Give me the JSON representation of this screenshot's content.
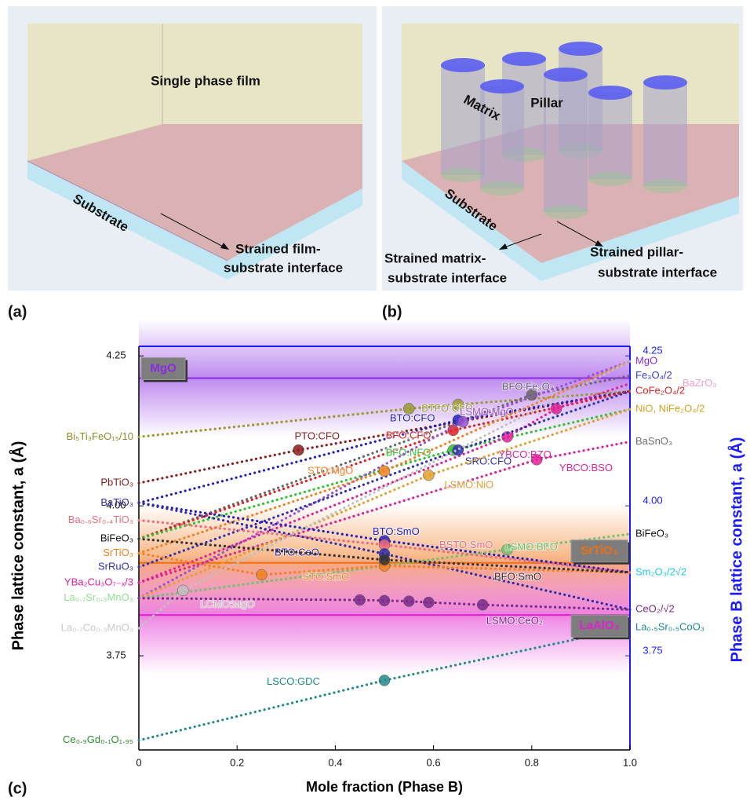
{
  "panel_a": {
    "label": "(a)",
    "film": "Single phase film",
    "substrate": "Substrate",
    "interface": [
      "Strained film-",
      "substrate interface"
    ]
  },
  "panel_b": {
    "label": "(b)",
    "matrix": "Matrix",
    "pillar": "Pillar",
    "substrate": "Substrate",
    "matrix_interface": [
      "Strained matrix-",
      "substrate interface"
    ],
    "pillar_interface": [
      "Strained pillar-",
      "substrate interface"
    ]
  },
  "panel_c": {
    "label": "(c)"
  },
  "chart_data": {
    "type": "line",
    "xlabel": "Mole fraction (Phase B)",
    "ylabel": "Phase lattice constant, a (Å)",
    "y2label": "Phase B lattice constant, a (Å)",
    "xlim": [
      0,
      1
    ],
    "xticks": [
      0,
      0.2,
      0.4,
      0.6,
      0.8,
      {
        "value": 1,
        "label": "1.0"
      }
    ],
    "ylim": [
      3.593,
      4.266
    ],
    "yticks": [
      3.75,
      {
        "value": 4,
        "label": "4.00"
      },
      4.25
    ],
    "y2lim": [
      3.593,
      4.266
    ],
    "y2ticks": [
      3.75,
      {
        "value": 4,
        "label": "4.00"
      },
      4.25
    ],
    "y2_color": "#1a1aff",
    "line_style": "dotted",
    "phase_a": [
      {
        "label": "Bi₅Ti₃FeO₁₅/10",
        "value": 4.115,
        "color": "#8b8b2a"
      },
      {
        "label": "PbTiO₃",
        "value": 4.038,
        "color": "#8b1a1a"
      },
      {
        "label": "BaTiO₃",
        "value": 4.005,
        "color": "#2a2aa8"
      },
      {
        "label": "Ba₀.₆Sr₀.₄TiO₃",
        "value": 3.976,
        "color": "#f06a7a"
      },
      {
        "label": "BiFeO₃",
        "value": 3.945,
        "color": "#111111"
      },
      {
        "label": "SrTiO₃",
        "value": 3.921,
        "color": "#f08020"
      },
      {
        "label": "SrRuO₃",
        "value": 3.898,
        "color": "#3030b0"
      },
      {
        "label": "YBa₂Cu₃O₇₋ₓ/3",
        "value": 3.872,
        "color": "#e0209a"
      },
      {
        "label": "La₀.₇Sr₀.₃MnO₃",
        "value": 3.846,
        "color": "#90e090"
      },
      {
        "label": "La₀.₇Co₀.₃MnO₃",
        "value": 3.796,
        "color": "#c8c8c8"
      },
      {
        "label": "Ce₀.₉Gd₀.₁O₁.₉₅",
        "value": 3.609,
        "color": "#2a8a2a"
      }
    ],
    "phase_b": [
      {
        "label": "MgO",
        "value": 4.241,
        "color": "#8a2be2"
      },
      {
        "label": "Fe₃O₄/2",
        "value": 4.217,
        "color": "#3a3ae0"
      },
      {
        "label": "BaZrO₃",
        "value": 4.204,
        "color": "#f0a0c8"
      },
      {
        "label": "CoFe₂O₄/2",
        "value": 4.191,
        "color": "#e02020"
      },
      {
        "label": "NiO, NiFe₂O₄/2",
        "value": 4.161,
        "color": "#d8a020"
      },
      {
        "label": "BaSnO₃",
        "value": 4.107,
        "color": "#707070"
      },
      {
        "label": "BiFeO₃",
        "value": 3.953,
        "color": "#111111"
      },
      {
        "label": "Sm₂O₃/2√2",
        "value": 3.889,
        "color": "#20c8f0"
      },
      {
        "label": "CeO₂/√2",
        "value": 3.827,
        "color": "#7a2a8a"
      },
      {
        "label": "La₀.₅Sr₀.₅CoO₃",
        "value": 3.797,
        "color": "#208a8a"
      }
    ],
    "substrates": [
      {
        "label": "MgO",
        "value": 4.213,
        "color": "#8a2be2"
      },
      {
        "label": "SrTiO₃",
        "value": 3.905,
        "color": "#f07010"
      },
      {
        "label": "LaAlO₃",
        "value": 3.818,
        "color": "#e020d0"
      }
    ],
    "series": [
      {
        "name": "BTFO:CFO",
        "color": "#9a9a30",
        "x": [
          0,
          0.55,
          0.65,
          1
        ],
        "values": [
          4.115,
          4.162,
          4.169,
          4.191
        ]
      },
      {
        "name": "PTO:CFO",
        "color": "#8b1a1a",
        "x": [
          0,
          0.325,
          1
        ],
        "values": [
          4.038,
          4.093,
          4.191
        ]
      },
      {
        "name": "BFO:Fe₃O₄",
        "color": "#666666",
        "x": [
          0,
          0.8,
          1
        ],
        "values": [
          3.945,
          4.185,
          4.217
        ]
      },
      {
        "name": "BTO:CFO",
        "color": "#2020c0",
        "x": [
          0,
          0.65,
          1
        ],
        "values": [
          4.005,
          4.143,
          4.191
        ]
      },
      {
        "name": "BFO:CFO",
        "color": "#e02020",
        "x": [
          0,
          0.64,
          1
        ],
        "values": [
          3.945,
          4.126,
          4.191
        ]
      },
      {
        "name": "BFO:NFO",
        "color": "#30c030",
        "x": [
          0,
          0.64,
          1
        ],
        "values": [
          3.945,
          4.093,
          4.161
        ]
      },
      {
        "name": "LSMO:MgO",
        "color": "#9a50d0",
        "x": [
          0,
          0.66,
          1
        ],
        "values": [
          3.846,
          4.14,
          4.241
        ]
      },
      {
        "name": "YBCO:BZO",
        "color": "#e0209a",
        "x": [
          0,
          0.75,
          0.85,
          1
        ],
        "values": [
          3.872,
          4.115,
          4.162,
          4.204
        ]
      },
      {
        "name": "SRO:CFO",
        "color": "#3030b0",
        "x": [
          0,
          0.65,
          1
        ],
        "values": [
          3.898,
          4.093,
          4.191
        ]
      },
      {
        "name": "STO:MgO",
        "color": "#f08020",
        "x": [
          0,
          0.5,
          1
        ],
        "values": [
          3.921,
          4.058,
          4.241
        ]
      },
      {
        "name": "YBCO:BSO",
        "color": "#e0209a",
        "x": [
          0,
          0.81,
          1
        ],
        "values": [
          3.872,
          4.077,
          4.107
        ]
      },
      {
        "name": "LSMO:NiO",
        "color": "#e0a030",
        "x": [
          0,
          0.59,
          1
        ],
        "values": [
          3.846,
          4.051,
          4.161
        ]
      },
      {
        "name": "BTO:SmO",
        "color": "#2020c0",
        "x": [
          0,
          0.5,
          1
        ],
        "values": [
          4.005,
          3.942,
          3.889
        ]
      },
      {
        "name": "LSMO:BFO",
        "color": "#70c070",
        "x": [
          0,
          0.75,
          1
        ],
        "values": [
          3.846,
          3.927,
          3.953
        ]
      },
      {
        "name": "BSTO:SmO",
        "color": "#f06a7a",
        "x": [
          0,
          0.5,
          1
        ],
        "values": [
          3.976,
          3.935,
          3.889
        ]
      },
      {
        "name": "BTO:CeO",
        "color": "#2a2aa8",
        "x": [
          0,
          0.5,
          1
        ],
        "values": [
          4.005,
          3.92,
          3.827
        ]
      },
      {
        "name": "STO:SmO",
        "color": "#f08020",
        "x": [
          0,
          0.25,
          0.5,
          1
        ],
        "values": [
          3.921,
          3.885,
          3.9,
          3.889
        ]
      },
      {
        "name": "BFO:SmO",
        "color": "#333333",
        "x": [
          0,
          0.5,
          1
        ],
        "values": [
          3.945,
          3.91,
          3.889
        ]
      },
      {
        "name": "LCMO:MgO",
        "color": "#c0c0c0",
        "x": [
          0,
          0.09,
          1
        ],
        "values": [
          3.796,
          3.859,
          4.241
        ]
      },
      {
        "name": "LSMO:CeO₂",
        "color": "#7a2a8a",
        "x": [
          0,
          0.45,
          0.5,
          0.55,
          0.59,
          0.7,
          1
        ],
        "values": [
          3.846,
          3.843,
          3.842,
          3.841,
          3.839,
          3.835,
          3.827
        ]
      },
      {
        "name": "LSCO:GDC",
        "color": "#208a8a",
        "x": [
          0,
          0.5,
          1
        ],
        "values": [
          3.609,
          3.709,
          3.797
        ]
      }
    ]
  }
}
